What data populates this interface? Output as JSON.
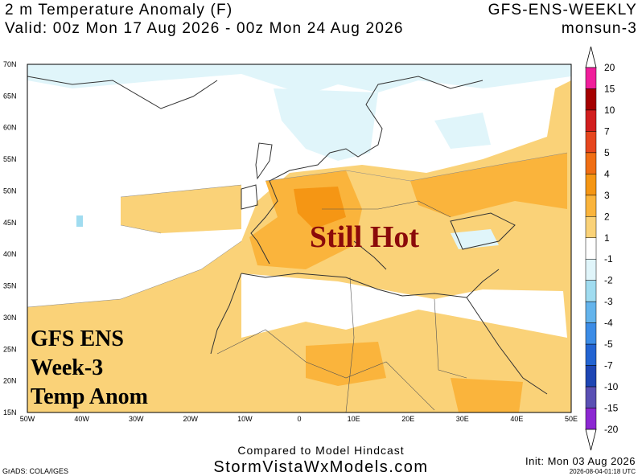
{
  "header": {
    "title": "2 m Temperature Anomaly (F)",
    "valid": "Valid: 00z Mon 17 Aug 2026 - 00z Mon 24 Aug 2026",
    "model": "GFS-ENS-WEEKLY",
    "user": "monsun-3"
  },
  "map": {
    "lat_labels": [
      "70N",
      "65N",
      "60N",
      "55N",
      "50N",
      "45N",
      "40N",
      "35N",
      "30N",
      "25N",
      "20N",
      "15N"
    ],
    "lon_labels": [
      "50W",
      "40W",
      "30W",
      "20W",
      "10W",
      "0",
      "10E",
      "20E",
      "30E",
      "40E",
      "50E"
    ]
  },
  "annotations": {
    "headline": "Still Hot",
    "caption": [
      "GFS ENS",
      "Week-3",
      "Temp Anom"
    ]
  },
  "colorbar": {
    "labels": [
      "20",
      "15",
      "10",
      "7",
      "5",
      "4",
      "3",
      "2",
      "1",
      "-1",
      "-2",
      "-3",
      "-4",
      "-5",
      "-7",
      "-10",
      "-15",
      "-20"
    ],
    "colors": [
      "#f01e9b",
      "#a50000",
      "#d21e1e",
      "#e6461e",
      "#f06e14",
      "#f59614",
      "#fab43c",
      "#fad278",
      "#ffffff",
      "#e0f5fa",
      "#a0dcf0",
      "#64b4ec",
      "#3c8ce6",
      "#2364d2",
      "#1e46b4",
      "#5a50b4",
      "#8c28d2"
    ]
  },
  "footer": {
    "note": "Compared to Model Hindcast",
    "site": "StormVistaWxModels.com",
    "init": "Init: Mon 03 Aug 2026",
    "grads": "GrADS: COLA/IGES",
    "stamp": "2026-08-04-01:18 UTC"
  }
}
